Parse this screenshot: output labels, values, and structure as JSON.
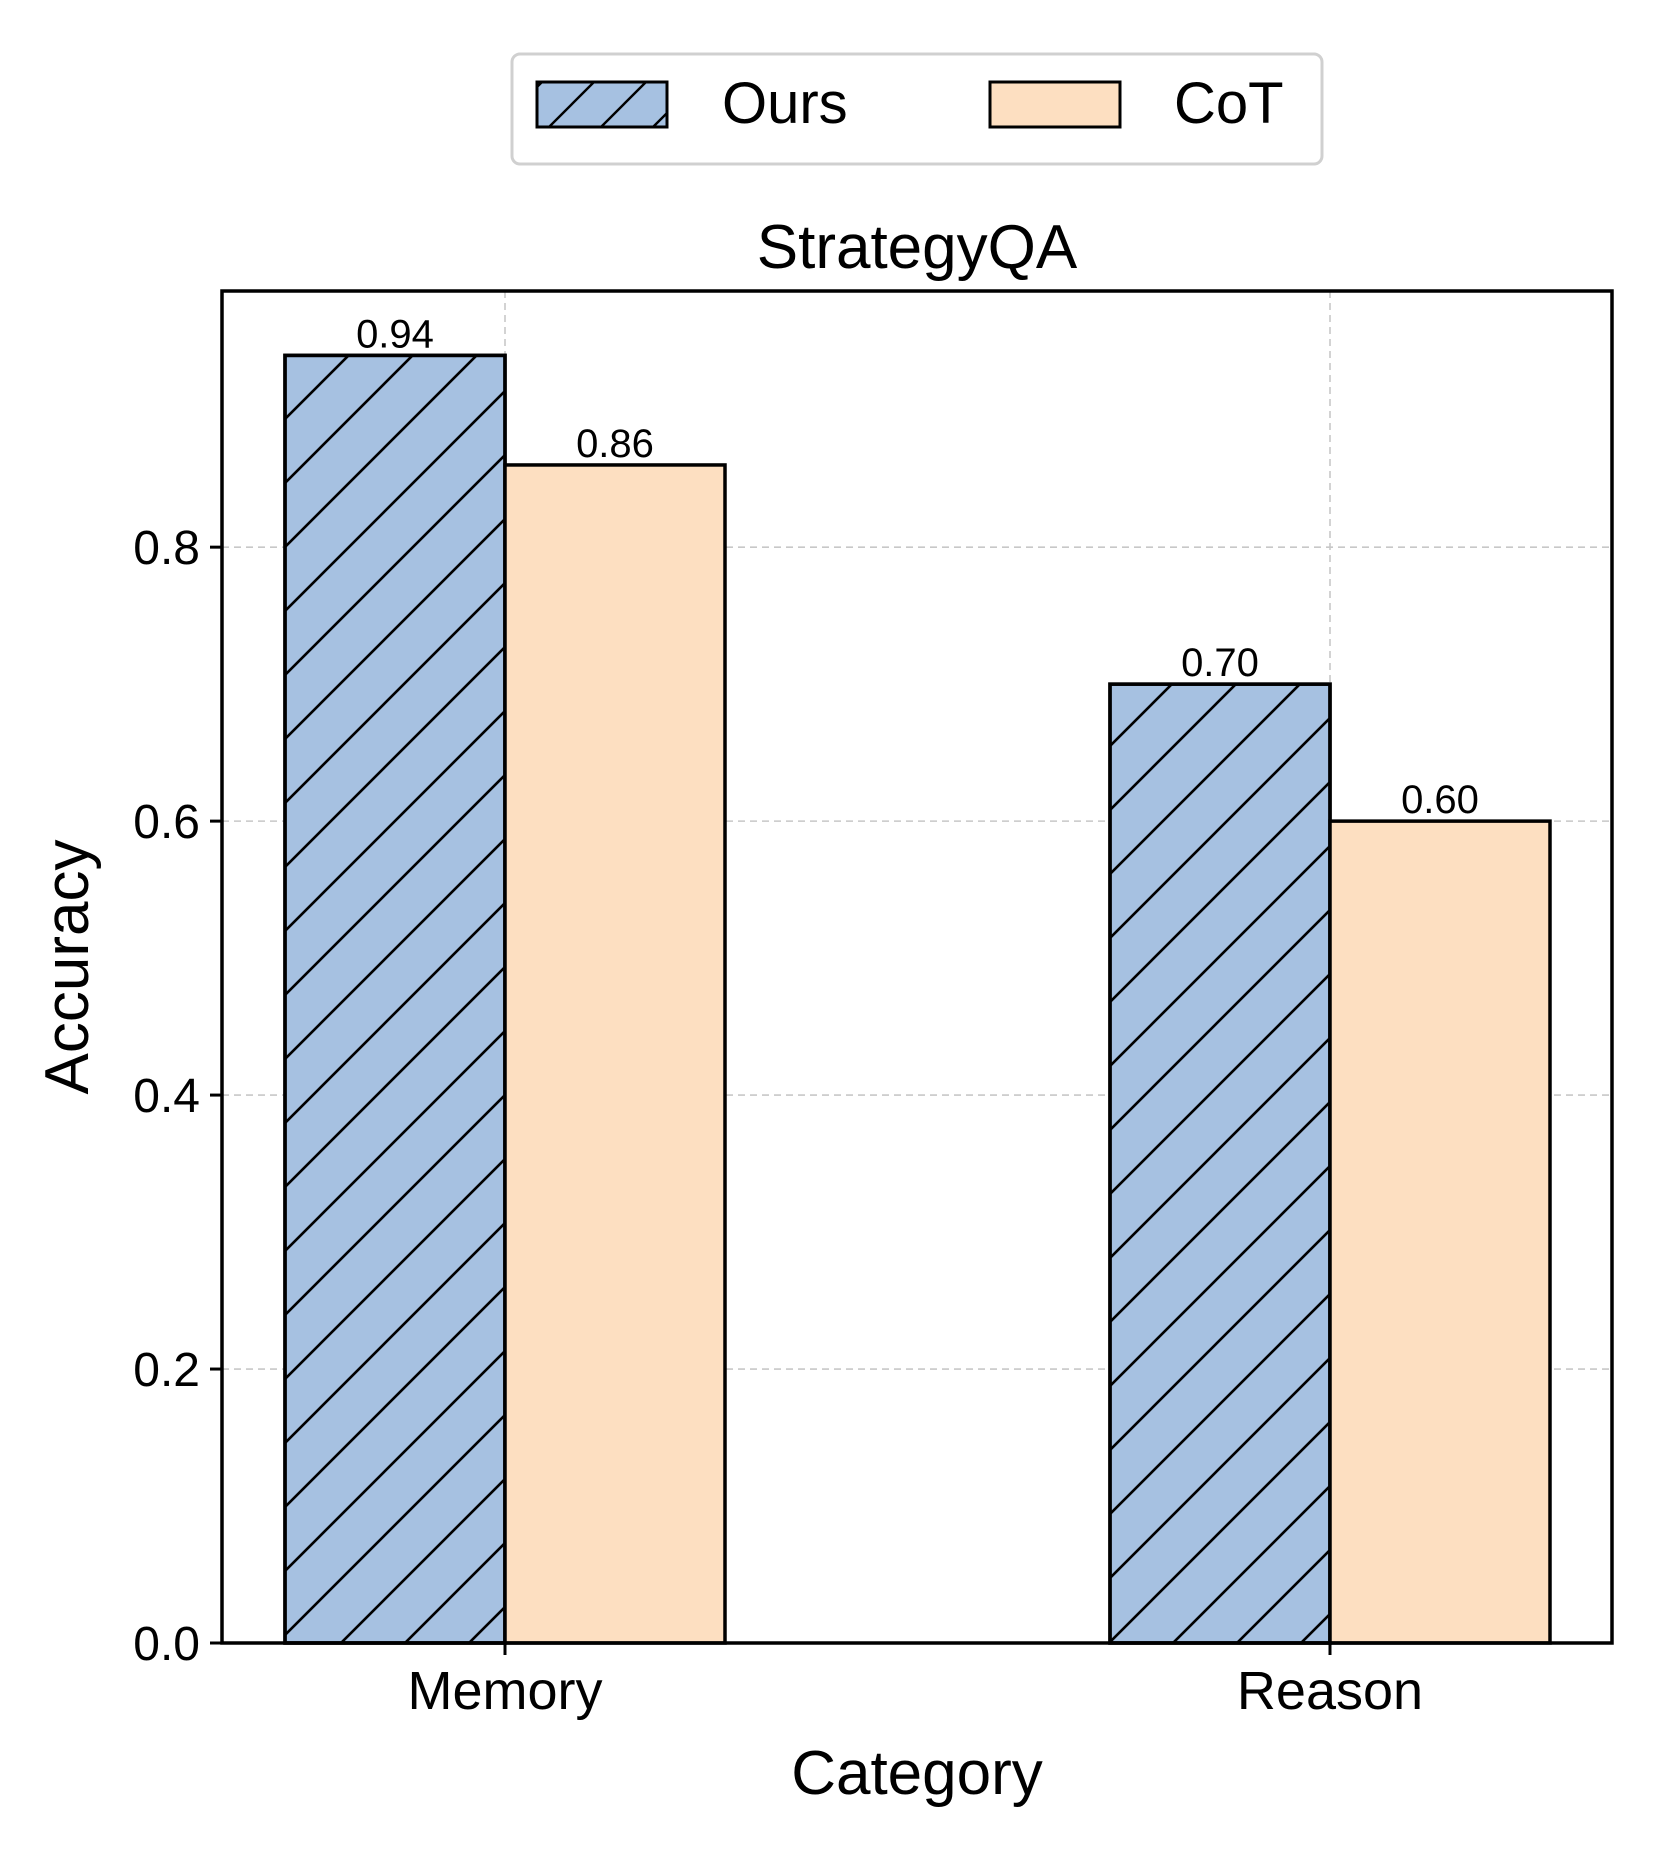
{
  "chart_data": {
    "type": "bar",
    "title": "StrategyQA",
    "xlabel": "Category",
    "ylabel": "Accuracy",
    "categories": [
      "Memory",
      "Reason"
    ],
    "series": [
      {
        "name": "Ours",
        "values": [
          0.94,
          0.7
        ],
        "labels": [
          "0.94",
          "0.70"
        ],
        "color": "#a6c1e1",
        "hatch": "diagonal"
      },
      {
        "name": "CoT",
        "values": [
          0.86,
          0.6
        ],
        "labels": [
          "0.86",
          "0.60"
        ],
        "color": "#fddfc1",
        "hatch": "none"
      }
    ],
    "ylim": [
      0,
      0.987
    ],
    "yticks": [
      0.0,
      0.2,
      0.4,
      0.6,
      0.8
    ],
    "ytick_labels": [
      "0.0",
      "0.2",
      "0.4",
      "0.6",
      "0.8"
    ],
    "grid": true,
    "legend_position": "top-center"
  }
}
